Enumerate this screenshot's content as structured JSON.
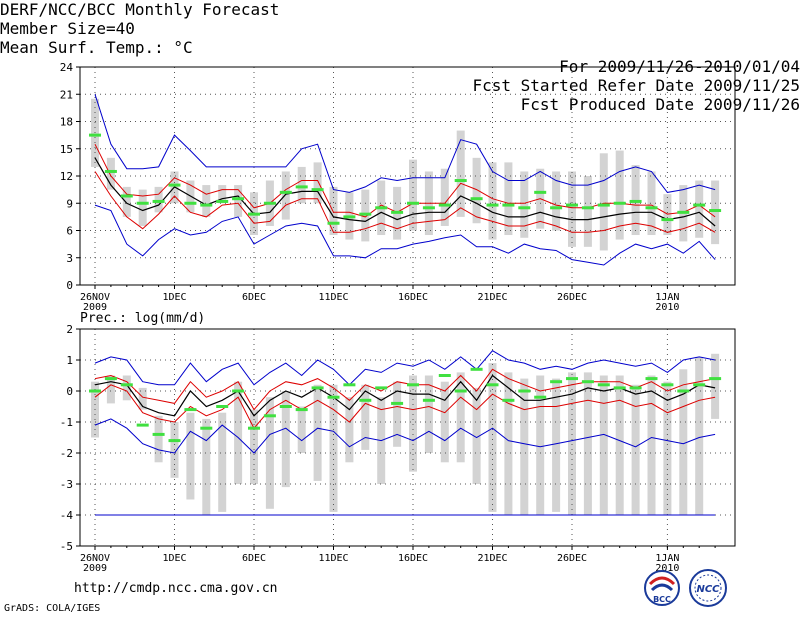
{
  "header": {
    "title": "DERF/NCC/BCC Monthly Forecast",
    "member_size": "Member Size=40",
    "variable": "Mean Surf. Temp.: °C",
    "period": "For 2009/11/26-2010/01/04",
    "started": "Fcst Started Refer Date 2009/11/25",
    "produced": "Fcst Produced Date 2009/11/26"
  },
  "footer": {
    "url": "http://cmdp.ncc.cma.gov.cn",
    "credit": "GrADS: COLA/IGES",
    "logo_left_text": "BCC",
    "logo_right_text": "NCC"
  },
  "colors": {
    "box": "#d3d3d3",
    "median": "#40e040",
    "envelope": "#0000cc",
    "quartile": "#dd0000",
    "mean": "#000000",
    "grid": "#555555"
  },
  "chart_data": [
    {
      "type": "box-ensemble",
      "title": "Mean Surf. Temp.: °C",
      "xlabel": "",
      "ylabel": "",
      "ylim": [
        0,
        24
      ],
      "yticks": [
        "0",
        "3",
        "6",
        "9",
        "12",
        "15",
        "18",
        "21",
        "24"
      ],
      "ytick_values": [
        0,
        3,
        6,
        9,
        12,
        15,
        18,
        21,
        24
      ],
      "x_ticks": [
        {
          "label": "26NOV",
          "sublabel": "2009",
          "day": 0
        },
        {
          "label": "1DEC",
          "sublabel": "",
          "day": 5
        },
        {
          "label": "6DEC",
          "sublabel": "",
          "day": 10
        },
        {
          "label": "11DEC",
          "sublabel": "",
          "day": 15
        },
        {
          "label": "16DEC",
          "sublabel": "",
          "day": 20
        },
        {
          "label": "21DEC",
          "sublabel": "",
          "day": 25
        },
        {
          "label": "26DEC",
          "sublabel": "",
          "day": 30
        },
        {
          "label": "1JAN",
          "sublabel": "2010",
          "day": 36
        }
      ],
      "days": 40,
      "series": [
        {
          "name": "max",
          "values": [
            21,
            15.5,
            12.8,
            12.8,
            13,
            16.5,
            14.8,
            13,
            13,
            13,
            13,
            13,
            13,
            15,
            15.5,
            10.5,
            10.2,
            10.8,
            11.8,
            11.5,
            11.8,
            11.8,
            11.8,
            16,
            15.5,
            12.5,
            11.5,
            11.5,
            12.5,
            11.5,
            11,
            11,
            11.5,
            12.5,
            13,
            12.5,
            10.2,
            10.5,
            11,
            10.5
          ]
        },
        {
          "name": "q75",
          "values": [
            15.5,
            12,
            10,
            9.8,
            10,
            11.8,
            11,
            10,
            10.5,
            10.5,
            8.5,
            9,
            10.5,
            11.5,
            11.5,
            8,
            8,
            7.5,
            8.8,
            8,
            9,
            9,
            9,
            11.2,
            10.5,
            9.5,
            9,
            9,
            9.5,
            8.8,
            8.5,
            8.5,
            9,
            9,
            8.8,
            8.8,
            7.8,
            8,
            8.8,
            7.5
          ]
        },
        {
          "name": "mean",
          "values": [
            14,
            11,
            9,
            8.2,
            8.8,
            10.8,
            9.8,
            8.8,
            9.5,
            9.8,
            7.8,
            8,
            10,
            10.3,
            10.3,
            7.5,
            7.2,
            7,
            8,
            7.2,
            7.8,
            8,
            8,
            9.8,
            9,
            8,
            7.5,
            7.5,
            8,
            7.5,
            7.2,
            7.2,
            7.5,
            7.8,
            8,
            8,
            7.2,
            7.5,
            8,
            6.5
          ]
        },
        {
          "name": "q25",
          "values": [
            12.5,
            9.8,
            7.5,
            6.2,
            7.8,
            9.8,
            8,
            7.5,
            8.8,
            9,
            6.8,
            7,
            8.8,
            9.5,
            9.5,
            5.8,
            5.8,
            6.2,
            6.8,
            6.2,
            6.8,
            7,
            7.2,
            8.5,
            7.5,
            7,
            6.5,
            6.5,
            7,
            6.5,
            5.8,
            5.8,
            6,
            6.5,
            6.8,
            6.5,
            5.8,
            6.2,
            6.8,
            5.8
          ]
        },
        {
          "name": "min",
          "values": [
            8.8,
            8.2,
            4.5,
            3.2,
            5,
            6.2,
            5.5,
            5.8,
            7,
            7.5,
            4.5,
            5.5,
            6.5,
            6.8,
            6.5,
            3.2,
            3.2,
            3,
            4,
            4,
            4.5,
            4.8,
            5.2,
            5.5,
            4.2,
            4.2,
            3.5,
            4.5,
            4,
            3.8,
            2.8,
            2.5,
            2.2,
            3.5,
            4.5,
            4,
            4.5,
            3.5,
            4.8,
            2.8
          ]
        },
        {
          "name": "box_high",
          "values": [
            20.5,
            14,
            10.8,
            10.5,
            10.8,
            12.5,
            11.5,
            11,
            11,
            11,
            10.2,
            11.5,
            12.5,
            13,
            13.5,
            10.8,
            10.2,
            10.5,
            11.5,
            10.8,
            13.8,
            12.5,
            12.8,
            17,
            14,
            13.5,
            13.5,
            12.5,
            12.8,
            12.5,
            12.5,
            12,
            14.5,
            14.8,
            13.2,
            12.5,
            10,
            11,
            11.5,
            11.5
          ]
        },
        {
          "name": "box_low",
          "values": [
            13,
            10.5,
            7.5,
            6.5,
            8,
            9,
            8,
            7.5,
            9,
            7.5,
            5.5,
            6.5,
            7.2,
            9,
            9,
            5.5,
            5,
            4.8,
            5.5,
            5,
            6,
            5.5,
            6.5,
            7.5,
            6.8,
            5,
            5.5,
            5.2,
            6.2,
            6,
            4.2,
            4.2,
            3.8,
            5,
            5.5,
            5.5,
            5.5,
            4.8,
            5.2,
            4.5
          ]
        },
        {
          "name": "median",
          "values": [
            16.5,
            12.5,
            9.8,
            9,
            9.2,
            11,
            9,
            8.8,
            9.2,
            9.5,
            7.8,
            9,
            10.2,
            10.8,
            10.5,
            6.8,
            7.5,
            7.8,
            8.5,
            8,
            9,
            8.5,
            8.8,
            11.5,
            9.5,
            8.8,
            8.8,
            8.5,
            10.2,
            8.5,
            8.8,
            8.5,
            8.8,
            9,
            9.2,
            8.5,
            7.2,
            8,
            8.8,
            8.2
          ]
        }
      ]
    },
    {
      "type": "box-ensemble",
      "title": "Prec.: log(mm/d)",
      "xlabel": "",
      "ylabel": "",
      "ylim": [
        -5,
        2
      ],
      "yticks": [
        "-5",
        "-4",
        "-3",
        "-2",
        "-1",
        "0",
        "1",
        "2"
      ],
      "ytick_values": [
        -5,
        -4,
        -3,
        -2,
        -1,
        0,
        1,
        2
      ],
      "x_ticks": [
        {
          "label": "26NOV",
          "sublabel": "2009",
          "day": 0
        },
        {
          "label": "1DEC",
          "sublabel": "",
          "day": 5
        },
        {
          "label": "6DEC",
          "sublabel": "",
          "day": 10
        },
        {
          "label": "11DEC",
          "sublabel": "",
          "day": 15
        },
        {
          "label": "16DEC",
          "sublabel": "",
          "day": 20
        },
        {
          "label": "21DEC",
          "sublabel": "",
          "day": 25
        },
        {
          "label": "26DEC",
          "sublabel": "",
          "day": 30
        },
        {
          "label": "1JAN",
          "sublabel": "2010",
          "day": 36
        }
      ],
      "days": 40,
      "min_line": -4,
      "series": [
        {
          "name": "max",
          "values": [
            0.9,
            1.1,
            1.0,
            0.3,
            0.2,
            0.2,
            0.9,
            0.3,
            0.7,
            0.9,
            0.2,
            0.6,
            0.9,
            0.5,
            1.0,
            0.7,
            0.2,
            0.7,
            0.6,
            0.9,
            0.8,
            1.0,
            0.7,
            1.1,
            0.7,
            1.3,
            1.0,
            0.9,
            0.7,
            0.8,
            0.7,
            0.9,
            1.0,
            0.9,
            0.8,
            0.9,
            0.6,
            1.0,
            1.1,
            1.0
          ]
        },
        {
          "name": "q75",
          "values": [
            0.4,
            0.5,
            0.3,
            -0.2,
            -0.3,
            -0.4,
            0.3,
            -0.2,
            0.0,
            0.3,
            -0.6,
            0.0,
            0.3,
            0.2,
            0.4,
            0.1,
            -0.3,
            0.2,
            0.0,
            0.3,
            0.2,
            0.2,
            0.0,
            0.5,
            0.0,
            0.7,
            0.4,
            0.2,
            0.0,
            0.1,
            0.2,
            0.3,
            0.3,
            0.3,
            0.1,
            0.3,
            0.0,
            0.2,
            0.3,
            0.4
          ]
        },
        {
          "name": "mean",
          "values": [
            0.2,
            0.3,
            0.2,
            -0.5,
            -0.7,
            -0.8,
            0.0,
            -0.5,
            -0.3,
            0.0,
            -0.8,
            -0.3,
            0.0,
            -0.2,
            0.1,
            -0.2,
            -0.6,
            0.0,
            -0.3,
            0.0,
            -0.1,
            -0.1,
            -0.3,
            0.3,
            -0.3,
            0.5,
            0.1,
            -0.3,
            -0.3,
            -0.2,
            -0.1,
            0.1,
            0.0,
            0.1,
            -0.1,
            0.0,
            -0.3,
            -0.1,
            0.2,
            0.1
          ]
        },
        {
          "name": "q25",
          "values": [
            -0.2,
            0.2,
            0.0,
            -0.7,
            -0.9,
            -1.0,
            -0.5,
            -0.8,
            -0.6,
            -0.2,
            -1.2,
            -0.6,
            -0.3,
            -0.6,
            -0.3,
            -0.6,
            -1.0,
            -0.4,
            -0.6,
            -0.5,
            -0.6,
            -0.5,
            -0.7,
            -0.2,
            -0.6,
            -0.1,
            -0.4,
            -0.6,
            -0.5,
            -0.5,
            -0.4,
            -0.3,
            -0.4,
            -0.3,
            -0.5,
            -0.4,
            -0.7,
            -0.5,
            -0.3,
            -0.2
          ]
        },
        {
          "name": "min",
          "values": [
            -1.1,
            -0.9,
            -1.2,
            -1.7,
            -1.9,
            -2.0,
            -1.3,
            -1.6,
            -1.1,
            -1.5,
            -2.0,
            -1.4,
            -1.2,
            -1.6,
            -1.2,
            -1.3,
            -1.8,
            -1.5,
            -1.6,
            -1.4,
            -1.6,
            -1.3,
            -1.6,
            -1.2,
            -1.5,
            -1.2,
            -1.6,
            -1.7,
            -1.8,
            -1.7,
            -1.6,
            -1.5,
            -1.4,
            -1.6,
            -1.8,
            -1.5,
            -1.6,
            -1.7,
            -1.5,
            -1.4
          ]
        },
        {
          "name": "box_high",
          "values": [
            0.3,
            0.5,
            0.5,
            0.1,
            -0.8,
            -1.0,
            -0.7,
            -0.9,
            -0.7,
            0.3,
            -0.6,
            -0.2,
            0.0,
            -0.5,
            0.2,
            0.2,
            -0.2,
            0.2,
            -0.2,
            0.3,
            0.5,
            0.5,
            0.3,
            0.6,
            0.1,
            0.9,
            0.6,
            0.4,
            0.5,
            0.4,
            0.6,
            0.6,
            0.5,
            0.5,
            0.2,
            0.5,
            0.3,
            0.7,
            1.1,
            1.2
          ]
        },
        {
          "name": "box_low",
          "values": [
            -1.5,
            -0.4,
            -0.3,
            -0.6,
            -2.3,
            -2.8,
            -3.5,
            -4.0,
            -3.9,
            -3.0,
            -3.0,
            -3.8,
            -3.1,
            -2.0,
            -2.9,
            -3.9,
            -2.3,
            -1.9,
            -3.0,
            -1.8,
            -2.6,
            -2.0,
            -2.3,
            -2.3,
            -3.0,
            -3.9,
            -4.0,
            -4.0,
            -4.0,
            -3.9,
            -4.0,
            -4.0,
            -4.0,
            -4.0,
            -4.0,
            -4.0,
            -4.0,
            -4.0,
            -4.0,
            -0.9
          ]
        },
        {
          "name": "median",
          "values": [
            0.0,
            0.4,
            0.2,
            -1.1,
            -1.4,
            -1.6,
            -0.6,
            -1.2,
            -0.5,
            0.0,
            -1.2,
            -0.8,
            -0.5,
            -0.6,
            0.1,
            -0.2,
            0.2,
            -0.3,
            0.1,
            -0.4,
            0.2,
            -0.3,
            0.5,
            0.0,
            0.7,
            0.2,
            -0.3,
            0.0,
            -0.2,
            0.3,
            0.4,
            0.3,
            0.2,
            0.1,
            0.1,
            0.4,
            0.2,
            0.0,
            0.2,
            0.4
          ]
        }
      ]
    }
  ],
  "subplot_titles": {
    "top": "",
    "bottom": "Prec.: log(mm/d)"
  }
}
